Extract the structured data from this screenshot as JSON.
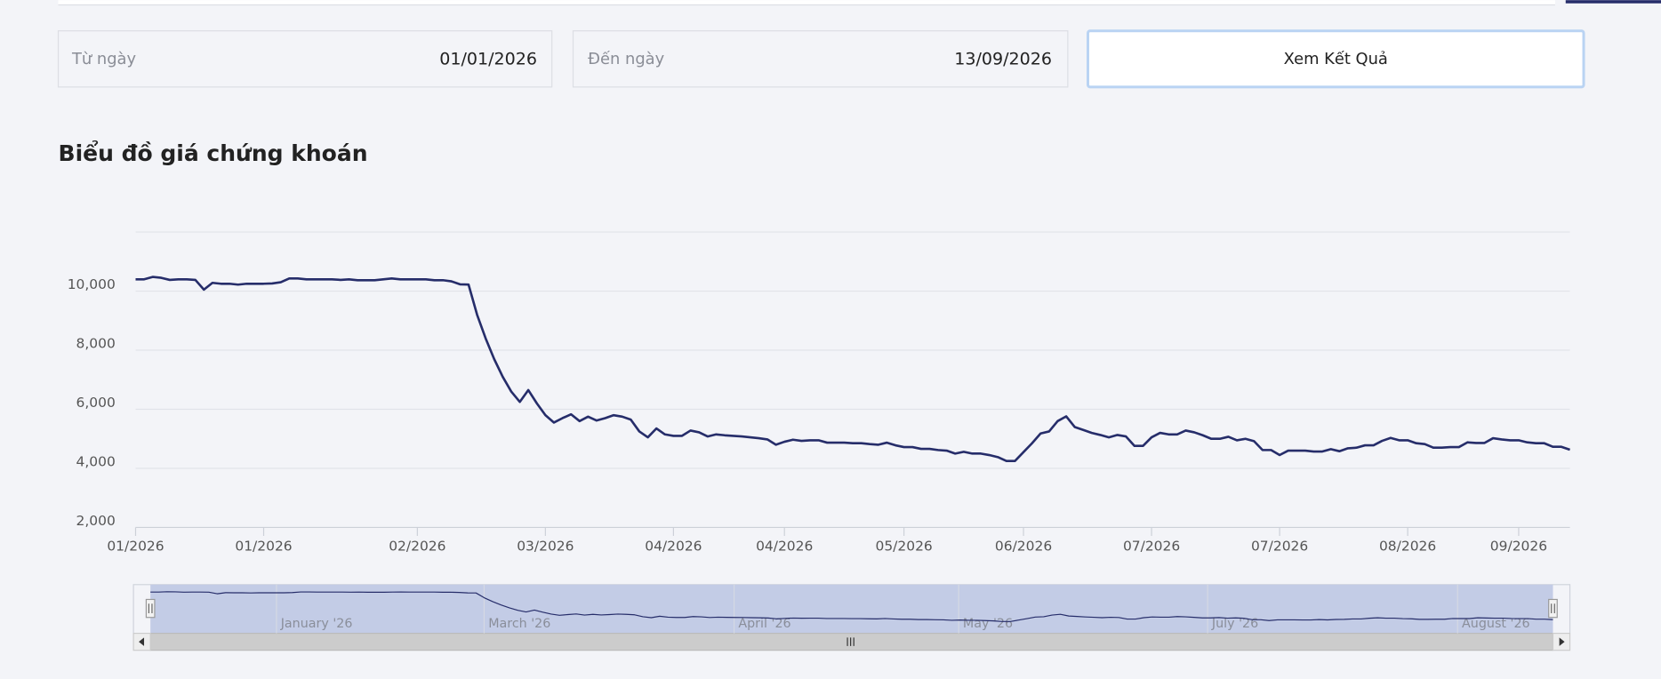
{
  "form": {
    "from": {
      "label": "Từ ngày",
      "value": "01/01/2026"
    },
    "to": {
      "label": "Đến ngày",
      "value": "13/09/2026"
    },
    "button": "Xem Kết Quả"
  },
  "chart_data": {
    "type": "line",
    "title": "Biểu đồ giá chứng khoán",
    "color": "#262d6a",
    "values": [
      10400,
      10400,
      10480,
      10450,
      10380,
      10400,
      10400,
      10380,
      10050,
      10280,
      10250,
      10250,
      10220,
      10250,
      10250,
      10250,
      10260,
      10300,
      10430,
      10430,
      10400,
      10400,
      10400,
      10400,
      10380,
      10400,
      10370,
      10370,
      10370,
      10400,
      10430,
      10400,
      10400,
      10400,
      10400,
      10370,
      10370,
      10330,
      10230,
      10220,
      9200,
      8400,
      7700,
      7100,
      6600,
      6250,
      6650,
      6200,
      5800,
      5550,
      5700,
      5830,
      5600,
      5750,
      5620,
      5700,
      5800,
      5750,
      5650,
      5250,
      5050,
      5350,
      5150,
      5100,
      5100,
      5280,
      5220,
      5080,
      5150,
      5120,
      5100,
      5080,
      5050,
      5020,
      4980,
      4800,
      4900,
      4970,
      4930,
      4950,
      4950,
      4870,
      4870,
      4870,
      4850,
      4850,
      4820,
      4800,
      4870,
      4780,
      4720,
      4720,
      4660,
      4660,
      4620,
      4600,
      4500,
      4560,
      4500,
      4500,
      4450,
      4380,
      4250,
      4250,
      4550,
      4850,
      5180,
      5250,
      5600,
      5760,
      5400,
      5300,
      5200,
      5130,
      5050,
      5130,
      5080,
      4760,
      4760,
      5050,
      5200,
      5150,
      5150,
      5280,
      5220,
      5120,
      5000,
      5000,
      5070,
      4950,
      5000,
      4920,
      4620,
      4620,
      4450,
      4600,
      4600,
      4600,
      4570,
      4570,
      4650,
      4580,
      4680,
      4700,
      4780,
      4780,
      4930,
      5030,
      4950,
      4950,
      4850,
      4820,
      4700,
      4700,
      4720,
      4720,
      4880,
      4860,
      4860,
      5020,
      4980,
      4950,
      4950,
      4880,
      4850,
      4850,
      4730,
      4730,
      4630
    ],
    "xlim": [
      0,
      168
    ],
    "xticks": [
      {
        "value": 0,
        "label": "01/2026"
      },
      {
        "value": 15,
        "label": "01/2026"
      },
      {
        "value": 33,
        "label": "02/2026"
      },
      {
        "value": 48,
        "label": "03/2026"
      },
      {
        "value": 63,
        "label": "04/2026"
      },
      {
        "value": 76,
        "label": "04/2026"
      },
      {
        "value": 90,
        "label": "05/2026"
      },
      {
        "value": 104,
        "label": "06/2026"
      },
      {
        "value": 119,
        "label": "07/2026"
      },
      {
        "value": 134,
        "label": "07/2026"
      },
      {
        "value": 149,
        "label": "08/2026"
      },
      {
        "value": 162,
        "label": "09/2026"
      }
    ],
    "ylim": [
      2000,
      12000
    ],
    "yticks": [
      {
        "value": 2000,
        "label": "2,000"
      },
      {
        "value": 4000,
        "label": "4,000"
      },
      {
        "value": 6000,
        "label": "6,000"
      },
      {
        "value": 8000,
        "label": "8,000"
      },
      {
        "value": 10000,
        "label": "10,000"
      }
    ],
    "grid": true,
    "navigator": {
      "labels": [
        "January '26",
        "March '26",
        "April '26",
        "May '26",
        "July '26",
        "August '26"
      ]
    }
  }
}
